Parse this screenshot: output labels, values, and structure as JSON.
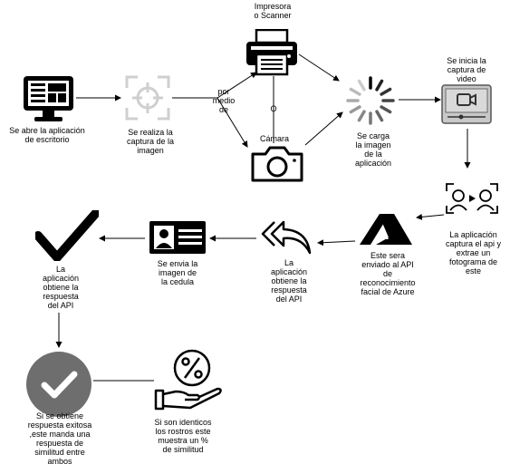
{
  "labels": {
    "desktop_app": "Se abre la aplicación\nde escritorio",
    "capture_image": "Se realiza la\ncaptura de la\nimagen",
    "por_medio_de": "por\nmedio\nde",
    "printer": "Impresora\no Scanner",
    "or": "O",
    "camera": "Cámara",
    "load_image": "Se carga\nla imagen\nde la\naplicación",
    "start_video": "Se inicia la\ncaptura de\nvideo",
    "capture_frame": "La aplicación\ncaptura el api y\nextrae un\nfotograma de\neste",
    "send_azure": "Este sera\nenviado al API\nde\nreconocimiento\nfacial de Azure",
    "gets_response": "La\naplicación\nobtiene la\nrespuesta\ndel API",
    "send_id_image": "Se envia la\nimagen de\nla cedula",
    "obtains_response": "La\naplicación\nobtiene la\nrespuesta\ndel API",
    "success_response": "Si se obtiene\nrespuesta exitosa\n,este manda una\nrespuesta de\nsimilitud entre\nambos",
    "similarity": "Si son identicos\nlos rostros este\nmuestra un %\nde similitud"
  },
  "icons": {
    "desktop": "monitor-icon",
    "capture": "focus-frame-icon",
    "printer": "printer-icon",
    "camera": "camera-icon",
    "loading": "loading-spinner-icon",
    "video": "video-player-icon",
    "frame": "face-scan-icon",
    "azure": "azure-logo-icon",
    "reply": "reply-all-icon",
    "id_card": "id-card-icon",
    "check": "checkmark-icon",
    "check_circle": "check-circle-icon",
    "percent": "percent-hand-icon"
  },
  "colors": {
    "ink": "#000000",
    "capture_gray": "#cfcfcf",
    "check_circle": "#6e6e6e"
  }
}
